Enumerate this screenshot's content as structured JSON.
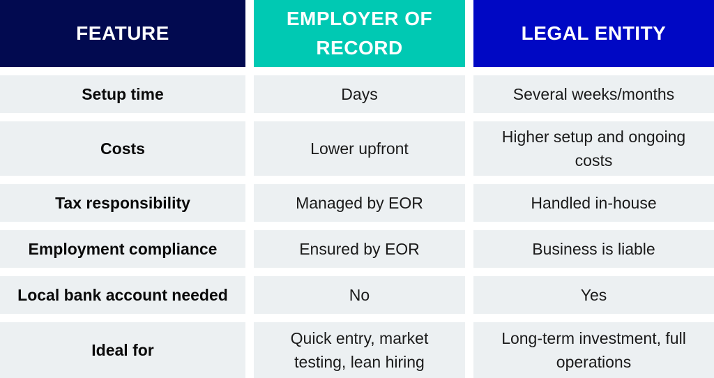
{
  "colors": {
    "feature_header_bg": "#020a50",
    "eor_header_bg": "#00c9b3",
    "legal_entity_header_bg": "#0008c4",
    "row_bg": "#ecf0f2",
    "header_text": "#ffffff"
  },
  "header": {
    "feature": "FEATURE",
    "eor": "EMPLOYER OF RECORD",
    "legal_entity": "LEGAL ENTITY"
  },
  "rows": [
    {
      "feature": "Setup time",
      "eor": "Days",
      "legal_entity": "Several weeks/months"
    },
    {
      "feature": "Costs",
      "eor": "Lower upfront",
      "legal_entity": "Higher setup and ongoing costs"
    },
    {
      "feature": "Tax responsibility",
      "eor": "Managed by EOR",
      "legal_entity": "Handled in-house"
    },
    {
      "feature": "Employment compliance",
      "eor": "Ensured by EOR",
      "legal_entity": "Business is liable"
    },
    {
      "feature": "Local bank account needed",
      "eor": "No",
      "legal_entity": "Yes"
    },
    {
      "feature": "Ideal for",
      "eor": "Quick entry, market testing, lean hiring",
      "legal_entity": "Long-term investment, full operations"
    }
  ]
}
